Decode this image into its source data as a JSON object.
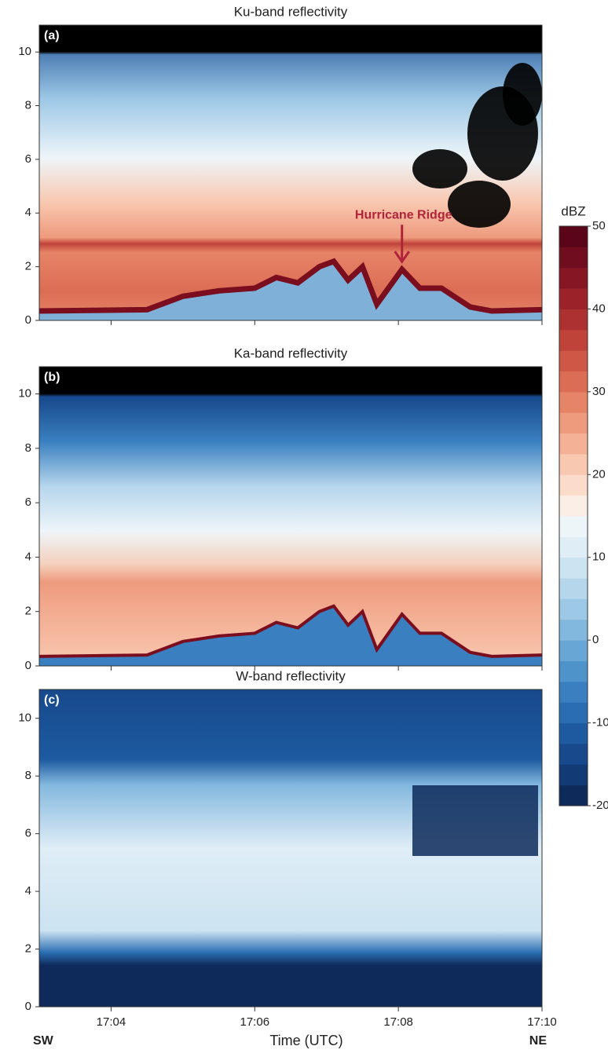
{
  "chart_data": [
    {
      "type": "heatmap",
      "title": "Ku-band reflectivity",
      "panel_label": "(a)",
      "xlim": [
        3,
        10
      ],
      "ylim": [
        0,
        11
      ],
      "yticks": [
        0,
        2,
        4,
        6,
        8,
        10
      ],
      "annotation": {
        "text": "Hurricane Ridge",
        "x": 8.05,
        "y": 2.1,
        "color": "#b0243a"
      }
    },
    {
      "type": "heatmap",
      "title": "Ka-band reflectivity",
      "panel_label": "(b)",
      "xlim": [
        3,
        10
      ],
      "ylim": [
        0,
        11
      ],
      "yticks": [
        0,
        2,
        4,
        6,
        8,
        10
      ]
    },
    {
      "type": "heatmap",
      "title": "W-band reflectivity",
      "panel_label": "(c)",
      "xlim": [
        3,
        10
      ],
      "ylim": [
        0,
        11
      ],
      "yticks": [
        0,
        2,
        4,
        6,
        8,
        10
      ],
      "xticks": [
        {
          "value": 4,
          "label": "17:04"
        },
        {
          "value": 6,
          "label": "17:06"
        },
        {
          "value": 8,
          "label": "17:08"
        },
        {
          "value": 10,
          "label": "17:10"
        }
      ],
      "x_label": "Time (UTC)",
      "left_label": "SW",
      "right_label": "NE"
    }
  ],
  "colorbar": {
    "label": "dBZ",
    "lim": [
      -20,
      50
    ],
    "ticks": [
      -20,
      -10,
      0,
      10,
      20,
      30,
      40,
      50
    ],
    "colors": [
      "#0d2a5a",
      "#123a75",
      "#17498c",
      "#1d5aa0",
      "#2a6db2",
      "#3a80c0",
      "#4f93cb",
      "#68a6d5",
      "#83b8de",
      "#9dc8e6",
      "#b6d6ec",
      "#cce3f1",
      "#dfedf6",
      "#eef5f9",
      "#fbeee6",
      "#fbdccb",
      "#f8c8b0",
      "#f4b196",
      "#ee9a7d",
      "#e68467",
      "#dc6d55",
      "#cf5746",
      "#c0433a",
      "#ae3131",
      "#9b2229",
      "#861623",
      "#700d1e",
      "#5a0618"
    ]
  }
}
